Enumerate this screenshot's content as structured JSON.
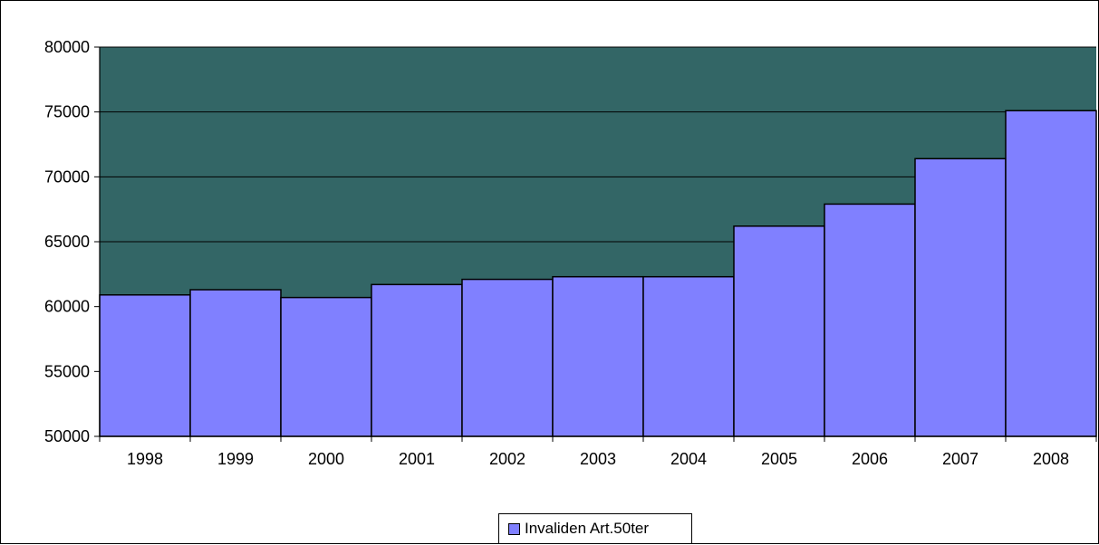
{
  "chart_data": {
    "type": "bar",
    "title": "",
    "xlabel": "",
    "ylabel": "",
    "categories": [
      "1998",
      "1999",
      "2000",
      "2001",
      "2002",
      "2003",
      "2004",
      "2005",
      "2006",
      "2007",
      "2008"
    ],
    "series": [
      {
        "name": "Invaliden Art.50ter",
        "values": [
          60900,
          61300,
          60700,
          61700,
          62100,
          62300,
          62300,
          66200,
          67900,
          71400,
          75100
        ]
      }
    ],
    "ylim": [
      50000,
      80000
    ],
    "yticks": [
      "50000",
      "55000",
      "60000",
      "65000",
      "70000",
      "75000",
      "80000"
    ],
    "grid": "horizontal",
    "legend": "bottom-center",
    "colors": {
      "plot_background": "#336666",
      "bar_fill": "#8080ff",
      "bar_stroke": "#000000",
      "gridline": "#000000"
    }
  }
}
